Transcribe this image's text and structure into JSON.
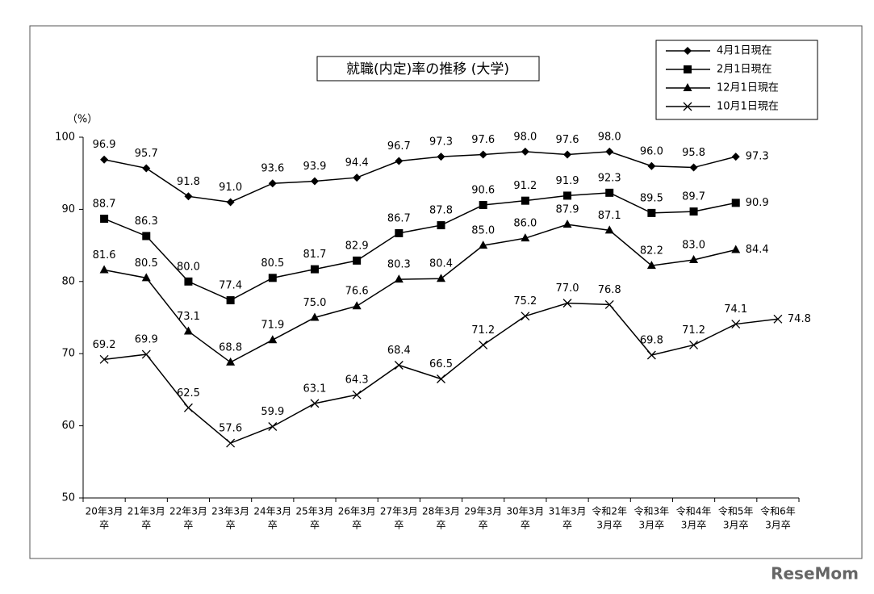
{
  "chart_data": {
    "type": "line",
    "title": "就職(内定)率の推移 (大学)",
    "y_unit": "（%）",
    "watermark": "ReseMom",
    "categories": [
      [
        "20年3月",
        "卒"
      ],
      [
        "21年3月",
        "卒"
      ],
      [
        "22年3月",
        "卒"
      ],
      [
        "23年3月",
        "卒"
      ],
      [
        "24年3月",
        "卒"
      ],
      [
        "25年3月",
        "卒"
      ],
      [
        "26年3月",
        "卒"
      ],
      [
        "27年3月",
        "卒"
      ],
      [
        "28年3月",
        "卒"
      ],
      [
        "29年3月",
        "卒"
      ],
      [
        "30年3月",
        "卒"
      ],
      [
        "31年3月",
        "卒"
      ],
      [
        "令和2年",
        "3月卒"
      ],
      [
        "令和3年",
        "3月卒"
      ],
      [
        "令和4年",
        "3月卒"
      ],
      [
        "令和5年",
        "3月卒"
      ],
      [
        "令和6年",
        "3月卒"
      ]
    ],
    "ylim": [
      50,
      100
    ],
    "yticks": [
      50,
      60,
      70,
      80,
      90,
      100
    ],
    "grid": false,
    "legend": "top-right",
    "series": [
      {
        "name": "4月1日現在",
        "color": "#000000",
        "marker": "diamond",
        "values": [
          96.9,
          95.7,
          91.8,
          91.0,
          93.6,
          93.9,
          94.4,
          96.7,
          97.3,
          97.6,
          98.0,
          97.6,
          98.0,
          96.0,
          95.8,
          97.3,
          null
        ],
        "value_labels": [
          "96.9",
          "95.7",
          "91.8",
          "91.0",
          "93.6",
          "93.9",
          "94.4",
          "96.7",
          "97.3",
          "97.6",
          "98.0",
          "97.6",
          "98.0",
          "96.0",
          "95.8",
          "97.3",
          null
        ]
      },
      {
        "name": "2月1日現在",
        "color": "#000000",
        "marker": "square",
        "values": [
          88.7,
          86.3,
          80.0,
          77.4,
          80.5,
          81.7,
          82.9,
          86.7,
          87.8,
          90.6,
          91.2,
          91.9,
          92.3,
          89.5,
          89.7,
          90.9,
          null
        ],
        "value_labels": [
          "88.7",
          "86.3",
          "80.0",
          "77.4",
          "80.5",
          "81.7",
          "82.9",
          "86.7",
          "87.8",
          "90.6",
          "91.2",
          "91.9",
          "92.3",
          "89.5",
          "89.7",
          "90.9",
          null
        ]
      },
      {
        "name": "12月1日現在",
        "color": "#000000",
        "marker": "triangle",
        "values": [
          81.6,
          80.5,
          73.1,
          68.8,
          71.9,
          75.0,
          76.6,
          80.3,
          80.4,
          85.0,
          86.0,
          87.9,
          87.1,
          82.2,
          83.0,
          84.4,
          null
        ],
        "value_labels": [
          "81.6",
          "80.5",
          "73.1",
          "68.8",
          "71.9",
          "75.0",
          "76.6",
          "80.3",
          "80.4",
          "85.0",
          "86.0",
          "87.9",
          "87.1",
          "82.2",
          "83.0",
          "84.4",
          null
        ]
      },
      {
        "name": "10月1日現在",
        "color": "#000000",
        "marker": "x",
        "values": [
          69.2,
          69.9,
          62.5,
          57.6,
          59.9,
          63.1,
          64.3,
          68.4,
          66.5,
          71.2,
          75.2,
          77.0,
          76.8,
          69.8,
          71.2,
          74.1,
          74.8
        ],
        "value_labels": [
          "69.2",
          "69.9",
          "62.5",
          "57.6",
          "59.9",
          "63.1",
          "64.3",
          "68.4",
          "66.5",
          "71.2",
          "75.2",
          "77.0",
          "76.8",
          "69.8",
          "71.2",
          "74.1",
          "74.8"
        ]
      }
    ]
  }
}
